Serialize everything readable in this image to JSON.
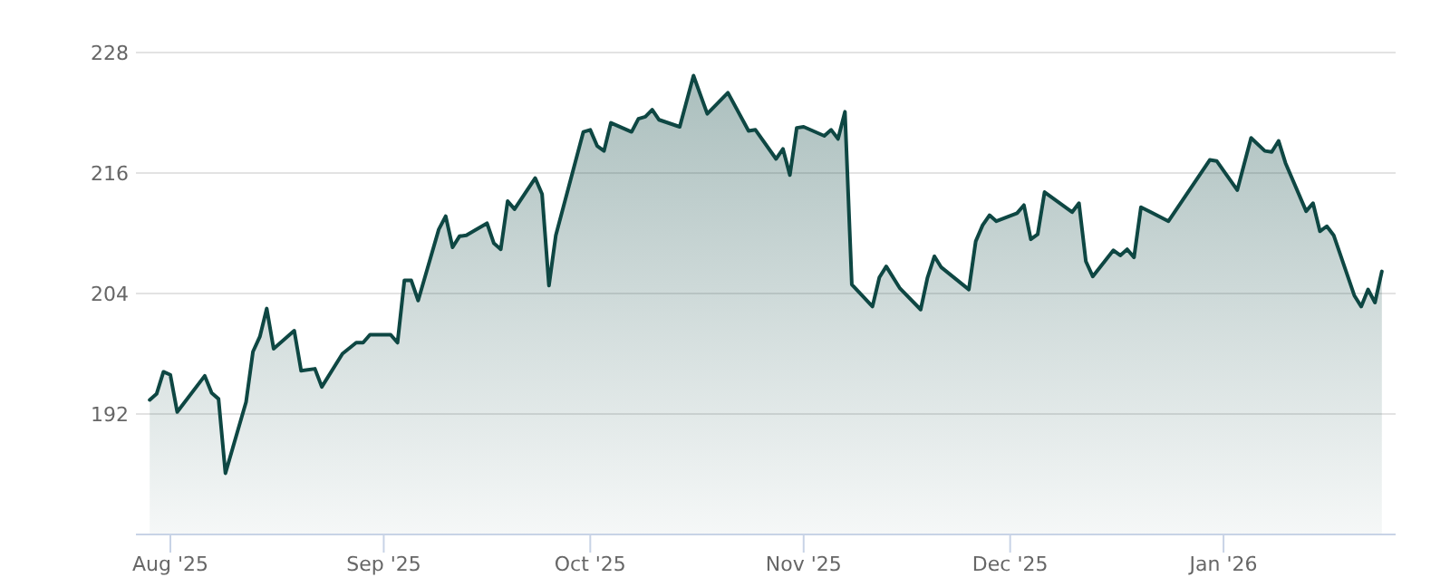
{
  "chart_data": {
    "type": "area",
    "xlim": [
      "2025-07-27",
      "2026-01-26"
    ],
    "ylim": [
      180,
      228
    ],
    "yticks": [
      192,
      204,
      216,
      228
    ],
    "xticks": [
      {
        "value": "2025-08-01",
        "label": "Aug '25"
      },
      {
        "value": "2025-09-01",
        "label": "Sep '25"
      },
      {
        "value": "2025-10-01",
        "label": "Oct '25"
      },
      {
        "value": "2025-11-01",
        "label": "Nov '25"
      },
      {
        "value": "2025-12-01",
        "label": "Dec '25"
      },
      {
        "value": "2026-01-01",
        "label": "Jan '26"
      }
    ],
    "grid": "y",
    "series": [
      {
        "color": "#0e4743",
        "x": [
          "2025-07-29",
          "2025-07-30",
          "2025-07-31",
          "2025-08-01",
          "2025-08-02",
          "2025-08-06",
          "2025-08-07",
          "2025-08-08",
          "2025-08-09",
          "2025-08-12",
          "2025-08-13",
          "2025-08-14",
          "2025-08-15",
          "2025-08-16",
          "2025-08-19",
          "2025-08-20",
          "2025-08-22",
          "2025-08-23",
          "2025-08-26",
          "2025-08-28",
          "2025-08-29",
          "2025-08-30",
          "2025-09-02",
          "2025-09-03",
          "2025-09-04",
          "2025-09-05",
          "2025-09-06",
          "2025-09-09",
          "2025-09-10",
          "2025-09-11",
          "2025-09-12",
          "2025-09-13",
          "2025-09-16",
          "2025-09-17",
          "2025-09-18",
          "2025-09-19",
          "2025-09-20",
          "2025-09-23",
          "2025-09-24",
          "2025-09-25",
          "2025-09-26",
          "2025-09-30",
          "2025-10-01",
          "2025-10-02",
          "2025-10-03",
          "2025-10-04",
          "2025-10-07",
          "2025-10-08",
          "2025-10-09",
          "2025-10-10",
          "2025-10-11",
          "2025-10-14",
          "2025-10-16",
          "2025-10-18",
          "2025-10-21",
          "2025-10-24",
          "2025-10-25",
          "2025-10-28",
          "2025-10-29",
          "2025-10-30",
          "2025-10-31",
          "2025-11-01",
          "2025-11-04",
          "2025-11-05",
          "2025-11-06",
          "2025-11-07",
          "2025-11-08",
          "2025-11-11",
          "2025-11-12",
          "2025-11-13",
          "2025-11-15",
          "2025-11-18",
          "2025-11-19",
          "2025-11-20",
          "2025-11-21",
          "2025-11-25",
          "2025-11-26",
          "2025-11-27",
          "2025-11-28",
          "2025-11-29",
          "2025-12-02",
          "2025-12-03",
          "2025-12-04",
          "2025-12-05",
          "2025-12-06",
          "2025-12-10",
          "2025-12-11",
          "2025-12-12",
          "2025-12-13",
          "2025-12-16",
          "2025-12-17",
          "2025-12-18",
          "2025-12-19",
          "2025-12-20",
          "2025-12-24",
          "2025-12-30",
          "2025-12-31",
          "2026-01-03",
          "2026-01-05",
          "2026-01-07",
          "2026-01-08",
          "2026-01-09",
          "2026-01-10",
          "2026-01-13",
          "2026-01-14",
          "2026-01-15",
          "2026-01-16",
          "2026-01-17",
          "2026-01-20",
          "2026-01-21",
          "2026-01-22",
          "2026-01-23",
          "2026-01-24"
        ],
        "values": [
          193.4,
          194.0,
          196.2,
          195.9,
          192.2,
          195.8,
          194.1,
          193.5,
          186.1,
          193.2,
          198.2,
          199.7,
          202.5,
          198.5,
          200.3,
          196.3,
          196.5,
          194.7,
          198.0,
          199.1,
          199.1,
          199.9,
          199.9,
          199.1,
          205.3,
          205.3,
          203.3,
          210.4,
          211.7,
          208.6,
          209.7,
          209.8,
          211.0,
          209.0,
          208.4,
          213.2,
          212.4,
          215.5,
          213.9,
          204.8,
          209.8,
          220.1,
          220.3,
          218.7,
          218.2,
          221.0,
          220.1,
          221.4,
          221.6,
          222.3,
          221.3,
          220.6,
          225.7,
          221.9,
          224.0,
          220.2,
          220.3,
          217.4,
          218.4,
          215.8,
          220.5,
          220.6,
          219.7,
          220.3,
          219.4,
          222.1,
          204.9,
          202.7,
          205.6,
          206.7,
          204.5,
          202.4,
          205.6,
          207.7,
          206.6,
          204.4,
          209.2,
          210.8,
          211.8,
          211.2,
          212.0,
          212.8,
          209.4,
          209.9,
          214.1,
          212.1,
          213.0,
          207.2,
          205.7,
          208.3,
          207.8,
          208.4,
          207.6,
          212.6,
          211.2,
          217.3,
          217.2,
          214.3,
          219.5,
          218.2,
          218.1,
          219.2,
          217.0,
          212.2,
          213.0,
          210.2,
          210.7,
          209.8,
          203.8,
          202.7,
          204.4,
          203.1,
          206.2
        ]
      }
    ]
  }
}
